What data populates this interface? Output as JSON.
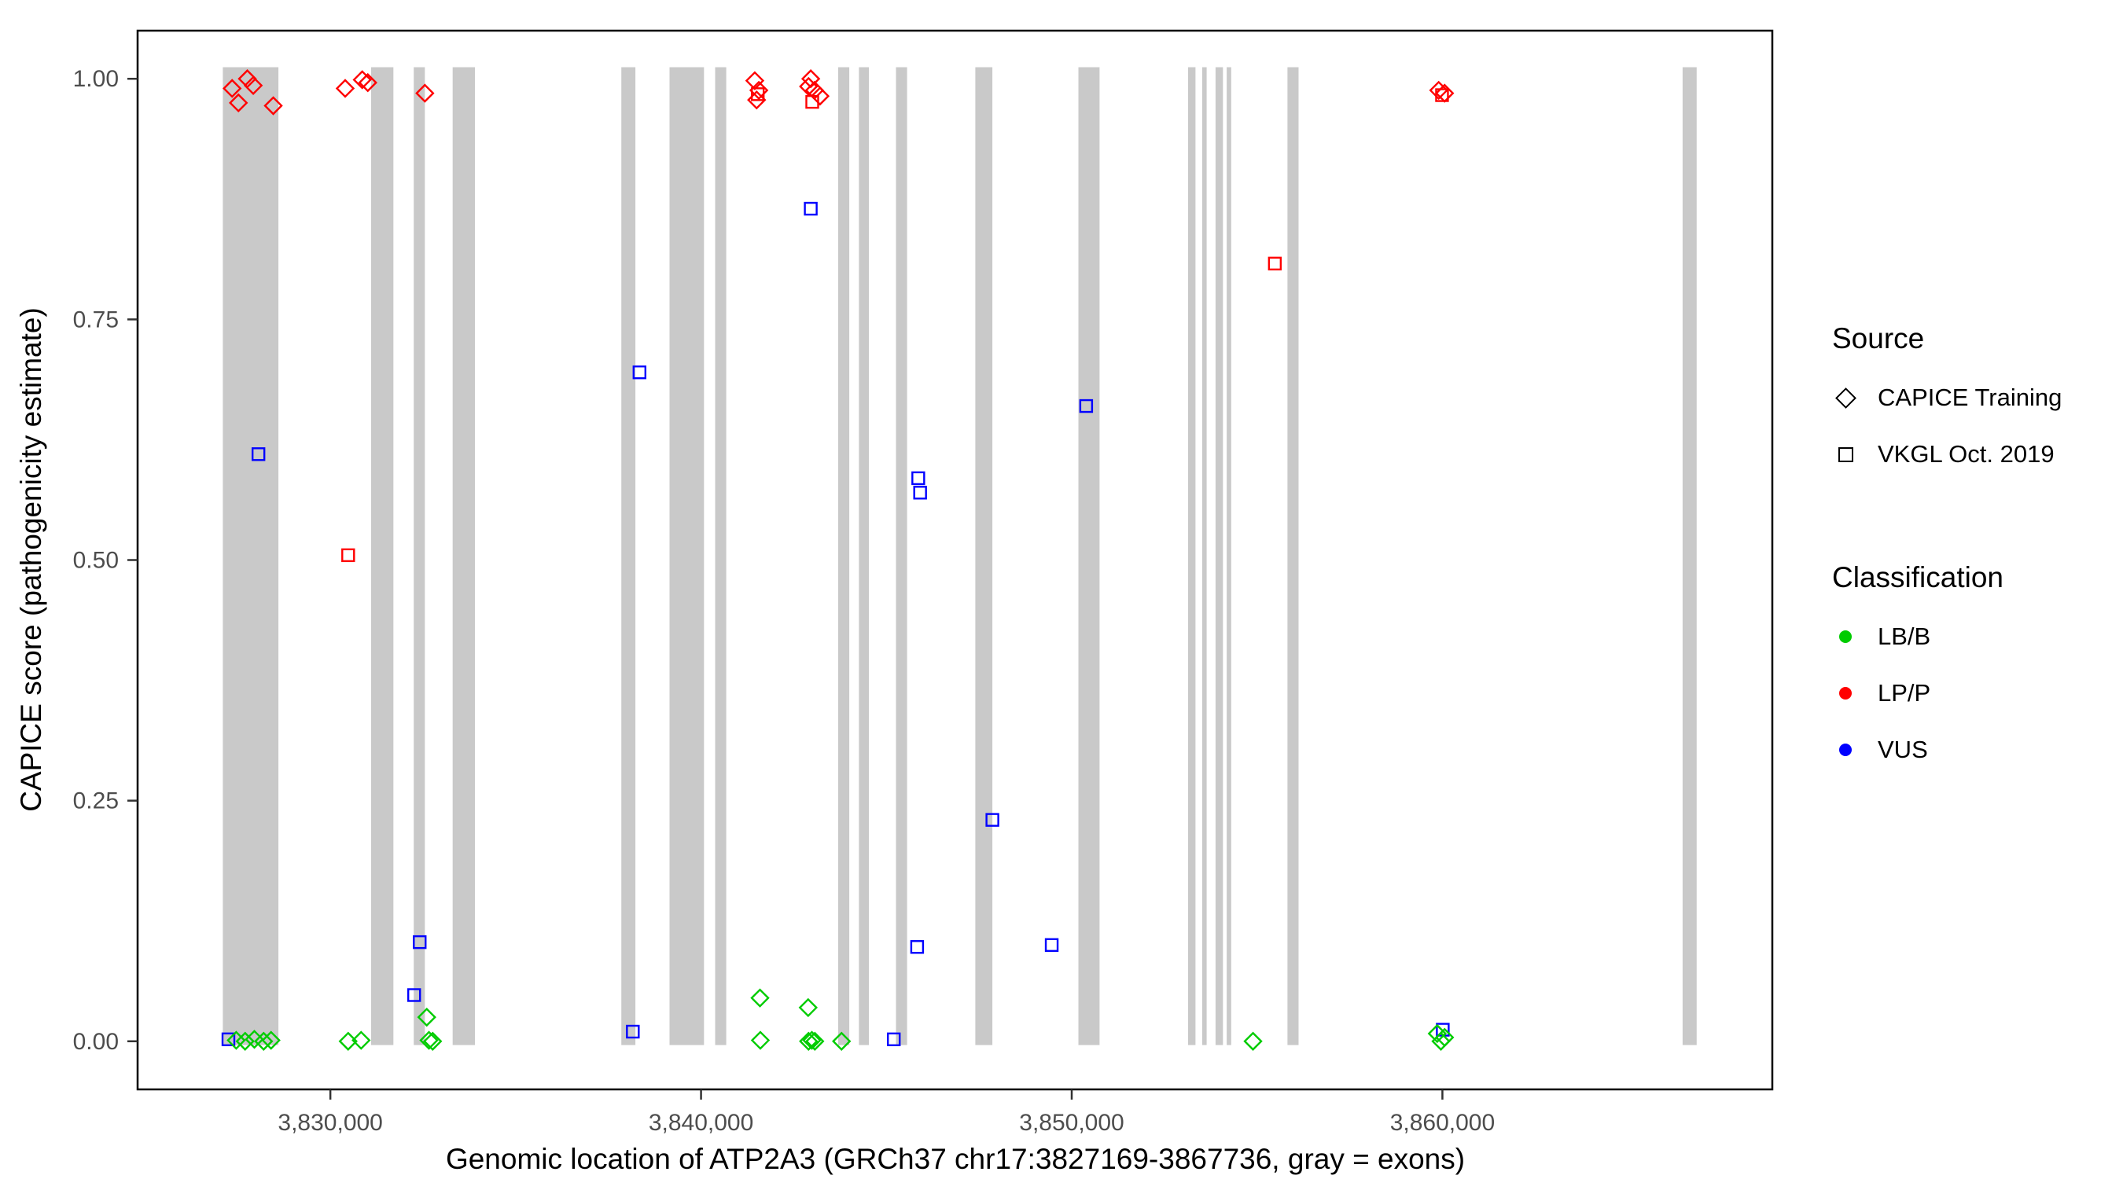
{
  "chart_data": {
    "type": "scatter",
    "title": "",
    "xlabel": "Genomic location of ATP2A3 (GRCh37 chr17:3827169-3867736, gray = exons)",
    "ylabel": "CAPICE score (pathogenicity estimate)",
    "x_domain": [
      3824800,
      3868900
    ],
    "y_domain": [
      -0.05,
      1.05
    ],
    "grid": false,
    "x_ticks": [
      {
        "value": 3830000,
        "label": "3,830,000"
      },
      {
        "value": 3840000,
        "label": "3,840,000"
      },
      {
        "value": 3850000,
        "label": "3,850,000"
      },
      {
        "value": 3860000,
        "label": "3,860,000"
      }
    ],
    "y_ticks": [
      {
        "value": 0.0,
        "label": "0.00"
      },
      {
        "value": 0.25,
        "label": "0.25"
      },
      {
        "value": 0.5,
        "label": "0.50"
      },
      {
        "value": 0.75,
        "label": "0.75"
      },
      {
        "value": 1.0,
        "label": "1.00"
      }
    ],
    "colors": {
      "exon": "#C9C9C9",
      "LB/B": "#00CC00",
      "LP/P": "#FF0000",
      "VUS": "#0000FF"
    },
    "exon_ymin": -0.004,
    "exon_ymax": 1.012,
    "exons": [
      [
        3827100,
        3828600
      ],
      [
        3831100,
        3831700
      ],
      [
        3832250,
        3832550
      ],
      [
        3833300,
        3833900
      ],
      [
        3837850,
        3838230
      ],
      [
        3839150,
        3840080
      ],
      [
        3840380,
        3840680
      ],
      [
        3843700,
        3844000
      ],
      [
        3844260,
        3844530
      ],
      [
        3845260,
        3845560
      ],
      [
        3847400,
        3847860
      ],
      [
        3850180,
        3850750
      ],
      [
        3853140,
        3853340
      ],
      [
        3853520,
        3853640
      ],
      [
        3853880,
        3854080
      ],
      [
        3854180,
        3854300
      ],
      [
        3855820,
        3856120
      ],
      [
        3866480,
        3866860
      ]
    ],
    "points": [
      {
        "x": 3827350,
        "y": 0.99,
        "shape": "diamond",
        "class": "LP/P",
        "source": "CAPICE Training"
      },
      {
        "x": 3827520,
        "y": 0.975,
        "shape": "diamond",
        "class": "LP/P",
        "source": "CAPICE Training"
      },
      {
        "x": 3827760,
        "y": 1.0,
        "shape": "diamond",
        "class": "LP/P",
        "source": "CAPICE Training"
      },
      {
        "x": 3827920,
        "y": 0.993,
        "shape": "diamond",
        "class": "LP/P",
        "source": "CAPICE Training"
      },
      {
        "x": 3828460,
        "y": 0.972,
        "shape": "diamond",
        "class": "LP/P",
        "source": "CAPICE Training"
      },
      {
        "x": 3830400,
        "y": 0.99,
        "shape": "diamond",
        "class": "LP/P",
        "source": "CAPICE Training"
      },
      {
        "x": 3830860,
        "y": 0.999,
        "shape": "diamond",
        "class": "LP/P",
        "source": "CAPICE Training"
      },
      {
        "x": 3831010,
        "y": 0.996,
        "shape": "diamond",
        "class": "LP/P",
        "source": "CAPICE Training"
      },
      {
        "x": 3832550,
        "y": 0.985,
        "shape": "diamond",
        "class": "LP/P",
        "source": "CAPICE Training"
      },
      {
        "x": 3841450,
        "y": 0.998,
        "shape": "diamond",
        "class": "LP/P",
        "source": "CAPICE Training"
      },
      {
        "x": 3841560,
        "y": 0.988,
        "shape": "diamond",
        "class": "LP/P",
        "source": "CAPICE Training"
      },
      {
        "x": 3841500,
        "y": 0.978,
        "shape": "diamond",
        "class": "LP/P",
        "source": "CAPICE Training"
      },
      {
        "x": 3842960,
        "y": 1.0,
        "shape": "diamond",
        "class": "LP/P",
        "source": "CAPICE Training"
      },
      {
        "x": 3842900,
        "y": 0.992,
        "shape": "diamond",
        "class": "LP/P",
        "source": "CAPICE Training"
      },
      {
        "x": 3843060,
        "y": 0.988,
        "shape": "diamond",
        "class": "LP/P",
        "source": "CAPICE Training"
      },
      {
        "x": 3843210,
        "y": 0.982,
        "shape": "diamond",
        "class": "LP/P",
        "source": "CAPICE Training"
      },
      {
        "x": 3859900,
        "y": 0.988,
        "shape": "diamond",
        "class": "LP/P",
        "source": "CAPICE Training"
      },
      {
        "x": 3860060,
        "y": 0.985,
        "shape": "diamond",
        "class": "LP/P",
        "source": "CAPICE Training"
      },
      {
        "x": 3830480,
        "y": 0.505,
        "shape": "square",
        "class": "LP/P",
        "source": "VKGL Oct. 2019"
      },
      {
        "x": 3841530,
        "y": 0.984,
        "shape": "square",
        "class": "LP/P",
        "source": "VKGL Oct. 2019"
      },
      {
        "x": 3843000,
        "y": 0.976,
        "shape": "square",
        "class": "LP/P",
        "source": "VKGL Oct. 2019"
      },
      {
        "x": 3855480,
        "y": 0.808,
        "shape": "square",
        "class": "LP/P",
        "source": "VKGL Oct. 2019"
      },
      {
        "x": 3859990,
        "y": 0.983,
        "shape": "square",
        "class": "LP/P",
        "source": "VKGL Oct. 2019"
      },
      {
        "x": 3827250,
        "y": 0.002,
        "shape": "square",
        "class": "VUS",
        "source": "VKGL Oct. 2019"
      },
      {
        "x": 3828060,
        "y": 0.61,
        "shape": "square",
        "class": "VUS",
        "source": "VKGL Oct. 2019"
      },
      {
        "x": 3832260,
        "y": 0.048,
        "shape": "square",
        "class": "VUS",
        "source": "VKGL Oct. 2019"
      },
      {
        "x": 3832410,
        "y": 0.103,
        "shape": "square",
        "class": "VUS",
        "source": "VKGL Oct. 2019"
      },
      {
        "x": 3838160,
        "y": 0.01,
        "shape": "square",
        "class": "VUS",
        "source": "VKGL Oct. 2019"
      },
      {
        "x": 3838340,
        "y": 0.695,
        "shape": "square",
        "class": "VUS",
        "source": "VKGL Oct. 2019"
      },
      {
        "x": 3842960,
        "y": 0.865,
        "shape": "square",
        "class": "VUS",
        "source": "VKGL Oct. 2019"
      },
      {
        "x": 3845200,
        "y": 0.002,
        "shape": "square",
        "class": "VUS",
        "source": "VKGL Oct. 2019"
      },
      {
        "x": 3845830,
        "y": 0.098,
        "shape": "square",
        "class": "VUS",
        "source": "VKGL Oct. 2019"
      },
      {
        "x": 3845860,
        "y": 0.585,
        "shape": "square",
        "class": "VUS",
        "source": "VKGL Oct. 2019"
      },
      {
        "x": 3845910,
        "y": 0.57,
        "shape": "square",
        "class": "VUS",
        "source": "VKGL Oct. 2019"
      },
      {
        "x": 3847860,
        "y": 0.23,
        "shape": "square",
        "class": "VUS",
        "source": "VKGL Oct. 2019"
      },
      {
        "x": 3849460,
        "y": 0.1,
        "shape": "square",
        "class": "VUS",
        "source": "VKGL Oct. 2019"
      },
      {
        "x": 3850390,
        "y": 0.66,
        "shape": "square",
        "class": "VUS",
        "source": "VKGL Oct. 2019"
      },
      {
        "x": 3860010,
        "y": 0.012,
        "shape": "square",
        "class": "VUS",
        "source": "VKGL Oct. 2019"
      },
      {
        "x": 3827460,
        "y": 0.001,
        "shape": "diamond",
        "class": "LB/B",
        "source": "CAPICE Training"
      },
      {
        "x": 3827700,
        "y": 0.0,
        "shape": "diamond",
        "class": "LB/B",
        "source": "CAPICE Training"
      },
      {
        "x": 3827950,
        "y": 0.002,
        "shape": "diamond",
        "class": "LB/B",
        "source": "CAPICE Training"
      },
      {
        "x": 3828200,
        "y": 0.0,
        "shape": "diamond",
        "class": "LB/B",
        "source": "CAPICE Training"
      },
      {
        "x": 3828400,
        "y": 0.001,
        "shape": "diamond",
        "class": "LB/B",
        "source": "CAPICE Training"
      },
      {
        "x": 3830480,
        "y": 0.0,
        "shape": "diamond",
        "class": "LB/B",
        "source": "CAPICE Training"
      },
      {
        "x": 3830830,
        "y": 0.001,
        "shape": "diamond",
        "class": "LB/B",
        "source": "CAPICE Training"
      },
      {
        "x": 3832600,
        "y": 0.025,
        "shape": "diamond",
        "class": "LB/B",
        "source": "CAPICE Training"
      },
      {
        "x": 3832660,
        "y": 0.001,
        "shape": "diamond",
        "class": "LB/B",
        "source": "CAPICE Training"
      },
      {
        "x": 3832760,
        "y": 0.0,
        "shape": "diamond",
        "class": "LB/B",
        "source": "CAPICE Training"
      },
      {
        "x": 3841590,
        "y": 0.045,
        "shape": "diamond",
        "class": "LB/B",
        "source": "CAPICE Training"
      },
      {
        "x": 3841600,
        "y": 0.001,
        "shape": "diamond",
        "class": "LB/B",
        "source": "CAPICE Training"
      },
      {
        "x": 3842890,
        "y": 0.035,
        "shape": "diamond",
        "class": "LB/B",
        "source": "CAPICE Training"
      },
      {
        "x": 3842900,
        "y": 0.0,
        "shape": "diamond",
        "class": "LB/B",
        "source": "CAPICE Training"
      },
      {
        "x": 3842990,
        "y": 0.001,
        "shape": "diamond",
        "class": "LB/B",
        "source": "CAPICE Training"
      },
      {
        "x": 3843070,
        "y": 0.0,
        "shape": "diamond",
        "class": "LB/B",
        "source": "CAPICE Training"
      },
      {
        "x": 3843790,
        "y": 0.0,
        "shape": "diamond",
        "class": "LB/B",
        "source": "CAPICE Training"
      },
      {
        "x": 3854890,
        "y": 0.0,
        "shape": "diamond",
        "class": "LB/B",
        "source": "CAPICE Training"
      },
      {
        "x": 3859860,
        "y": 0.008,
        "shape": "diamond",
        "class": "LB/B",
        "source": "CAPICE Training"
      },
      {
        "x": 3859960,
        "y": 0.0,
        "shape": "diamond",
        "class": "LB/B",
        "source": "CAPICE Training"
      },
      {
        "x": 3860060,
        "y": 0.004,
        "shape": "diamond",
        "class": "LB/B",
        "source": "CAPICE Training"
      }
    ]
  },
  "legend": {
    "source": {
      "title": "Source",
      "items": [
        {
          "shape": "diamond",
          "label": "CAPICE Training"
        },
        {
          "shape": "square",
          "label": "VKGL Oct. 2019"
        }
      ]
    },
    "classification": {
      "title": "Classification",
      "items": [
        {
          "label": "LB/B",
          "color": "#00CC00"
        },
        {
          "label": "LP/P",
          "color": "#FF0000"
        },
        {
          "label": "VUS",
          "color": "#0000FF"
        }
      ]
    }
  }
}
